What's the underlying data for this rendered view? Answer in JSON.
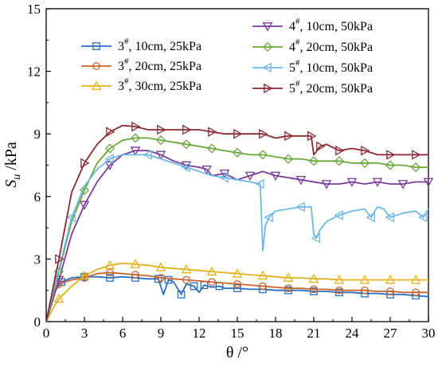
{
  "chart_data": {
    "type": "line",
    "xlabel": "θ /°",
    "ylabel_main": "S",
    "ylabel_sub": "u",
    "ylabel_unit": " /kPa",
    "xlim": [
      0,
      30
    ],
    "ylim": [
      0,
      15
    ],
    "x_ticks": [
      0,
      3,
      6,
      9,
      12,
      15,
      18,
      21,
      24,
      27,
      30
    ],
    "y_ticks": [
      0,
      3,
      6,
      9,
      12,
      15
    ],
    "grid": false,
    "legend_placement": "top, two columns",
    "series": [
      {
        "name": "3#, 10cm, 25kPa",
        "label_main": "3",
        "label_sup": "#",
        "label_rest": ", 10cm, 25kPa",
        "color": "#2a6ebf",
        "marker": "square",
        "marker_every": 2,
        "x": [
          0,
          0.6,
          1.2,
          2,
          3,
          4,
          5,
          6,
          7,
          8,
          8.8,
          9.2,
          9.6,
          10,
          10.6,
          11,
          11.6,
          12,
          12.4,
          13,
          13.6,
          14,
          15,
          16,
          17,
          18,
          19,
          20,
          21,
          22,
          23,
          24,
          25,
          26,
          27,
          28,
          29,
          30
        ],
        "y": [
          0,
          1.4,
          1.9,
          2.1,
          2.15,
          2.15,
          2.1,
          2.15,
          2.1,
          2.05,
          2.05,
          1.3,
          2.0,
          1.9,
          1.3,
          1.8,
          1.7,
          1.4,
          1.75,
          1.65,
          1.7,
          1.6,
          1.6,
          1.55,
          1.55,
          1.5,
          1.5,
          1.5,
          1.45,
          1.45,
          1.4,
          1.4,
          1.35,
          1.35,
          1.3,
          1.3,
          1.25,
          1.2
        ]
      },
      {
        "name": "3#, 20cm, 25kPa",
        "label_main": "3",
        "label_sup": "#",
        "label_rest": ", 20cm, 25kPa",
        "color": "#c8642c",
        "marker": "circle",
        "marker_every": 2,
        "x": [
          0,
          0.5,
          1,
          2,
          3,
          4,
          5,
          6,
          7,
          8,
          9,
          10,
          11,
          12,
          13,
          14,
          15,
          16,
          17,
          18,
          19,
          20,
          21,
          22,
          23,
          24,
          25,
          26,
          27,
          28,
          29,
          30
        ],
        "y": [
          0,
          1.2,
          1.8,
          2.0,
          2.1,
          2.3,
          2.35,
          2.3,
          2.25,
          2.2,
          2.1,
          2.05,
          2.0,
          1.95,
          1.9,
          1.85,
          1.8,
          1.75,
          1.7,
          1.65,
          1.6,
          1.6,
          1.55,
          1.55,
          1.5,
          1.5,
          1.5,
          1.45,
          1.45,
          1.4,
          1.4,
          1.4
        ]
      },
      {
        "name": "3#, 30cm, 25kPa",
        "label_main": "3",
        "label_sup": "#",
        "label_rest": ", 30cm, 25kPa",
        "color": "#e0b21c",
        "marker": "triangle-up",
        "marker_every": 2,
        "x": [
          0,
          0.5,
          1,
          2,
          3,
          4,
          5,
          6,
          7,
          8,
          9,
          10,
          11,
          12,
          13,
          14,
          15,
          16,
          17,
          18,
          19,
          20,
          21,
          22,
          23,
          24,
          25,
          26,
          27,
          28,
          29,
          30
        ],
        "y": [
          0,
          0.6,
          1.1,
          1.7,
          2.2,
          2.5,
          2.7,
          2.8,
          2.75,
          2.7,
          2.6,
          2.55,
          2.5,
          2.45,
          2.4,
          2.35,
          2.3,
          2.25,
          2.2,
          2.15,
          2.1,
          2.1,
          2.05,
          2.05,
          2.0,
          2.0,
          2.0,
          2.0,
          2.0,
          2.0,
          2.0,
          2.0
        ]
      },
      {
        "name": "4#, 10cm, 50kPa",
        "label_main": "4",
        "label_sup": "#",
        "label_rest": ", 10cm, 50kPa",
        "color": "#7a3a9a",
        "marker": "triangle-down",
        "marker_every": 2,
        "x": [
          0,
          0.5,
          1,
          2,
          3,
          4,
          5,
          6,
          7,
          8,
          9,
          10,
          11,
          12,
          12.6,
          13,
          14,
          15,
          16,
          17,
          18,
          19,
          20,
          21,
          22,
          23,
          24,
          25,
          26,
          27,
          28,
          29,
          30
        ],
        "y": [
          0,
          1.0,
          2.0,
          4.2,
          5.6,
          6.7,
          7.5,
          8.0,
          8.2,
          8.2,
          8.0,
          7.7,
          7.5,
          7.4,
          7.3,
          7.0,
          7.1,
          6.8,
          7.0,
          7.2,
          7.0,
          6.9,
          6.8,
          6.7,
          6.6,
          6.6,
          6.7,
          6.6,
          6.7,
          6.6,
          6.6,
          6.7,
          6.7
        ]
      },
      {
        "name": "4#, 20cm, 50kPa",
        "label_main": "4",
        "label_sup": "#",
        "label_rest": ", 20cm, 50kPa",
        "color": "#6aa83a",
        "marker": "diamond",
        "marker_every": 2,
        "x": [
          0,
          0.5,
          1,
          2,
          3,
          4,
          5,
          6,
          7,
          8,
          9,
          10,
          11,
          12,
          13,
          14,
          15,
          16,
          17,
          18,
          19,
          20,
          21,
          22,
          23,
          24,
          25,
          26,
          27,
          28,
          29,
          30
        ],
        "y": [
          0,
          1.2,
          2.4,
          4.8,
          6.3,
          7.6,
          8.3,
          8.7,
          8.8,
          8.8,
          8.7,
          8.6,
          8.5,
          8.4,
          8.3,
          8.2,
          8.1,
          8.0,
          8.0,
          7.9,
          7.8,
          7.8,
          7.7,
          7.7,
          7.7,
          7.6,
          7.6,
          7.6,
          7.5,
          7.5,
          7.4,
          7.4
        ]
      },
      {
        "name": "5#, 10cm, 50kPa",
        "label_main": "5",
        "label_sup": "#",
        "label_rest": ", 10cm, 50kPa",
        "color": "#6eb8e8",
        "marker": "triangle-left",
        "marker_every": 3,
        "x": [
          0,
          0.5,
          1,
          2,
          3,
          4,
          5,
          6,
          7,
          8,
          9,
          10,
          11,
          12,
          13,
          14,
          15,
          16,
          16.8,
          17.0,
          17.2,
          17.5,
          18,
          19,
          20,
          20.8,
          21.0,
          21.2,
          21.5,
          22,
          23,
          24,
          25,
          25.5,
          26,
          26.5,
          27,
          28,
          29,
          29.6,
          30
        ],
        "y": [
          0,
          1.3,
          2.5,
          5.0,
          6.5,
          7.3,
          7.8,
          8.0,
          8.0,
          8.0,
          7.8,
          7.6,
          7.4,
          7.2,
          7.0,
          6.9,
          6.8,
          6.7,
          6.6,
          3.4,
          4.6,
          5.0,
          5.3,
          5.4,
          5.5,
          5.5,
          4.2,
          4.0,
          4.4,
          4.8,
          5.1,
          5.3,
          5.4,
          5.0,
          5.5,
          5.4,
          5.0,
          5.2,
          5.3,
          5.0,
          5.4
        ]
      },
      {
        "name": "5#, 20cm, 50kPa",
        "label_main": "5",
        "label_sup": "#",
        "label_rest": ", 20cm, 50kPa",
        "color": "#8a2a32",
        "marker": "triangle-right",
        "marker_every": 2,
        "x": [
          0,
          0.5,
          1,
          2,
          3,
          4,
          5,
          6,
          7,
          8,
          9,
          10,
          11,
          12,
          13,
          14,
          15,
          16,
          17,
          18,
          19,
          20,
          20.8,
          21.0,
          21.5,
          22,
          23,
          24,
          25,
          26,
          27,
          28,
          29,
          30
        ],
        "y": [
          0,
          1.5,
          3.0,
          6.2,
          7.6,
          8.5,
          9.1,
          9.4,
          9.35,
          9.2,
          9.2,
          9.2,
          9.2,
          9.2,
          9.1,
          9.0,
          9.0,
          9.0,
          9.0,
          8.8,
          8.9,
          8.9,
          8.9,
          8.0,
          8.4,
          8.5,
          8.2,
          8.3,
          8.2,
          8.0,
          8.0,
          8.0,
          8.0,
          8.0
        ]
      }
    ]
  }
}
